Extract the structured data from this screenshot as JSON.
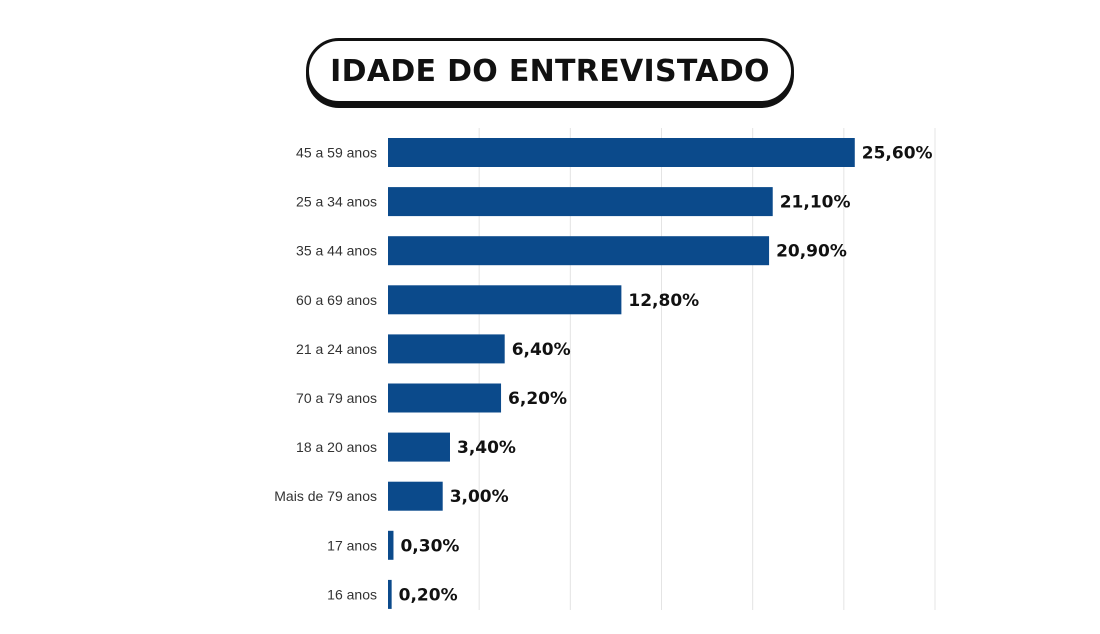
{
  "colors": {
    "bar": "#0b4a8b",
    "grid": "#e4e4e4"
  },
  "chart_data": {
    "type": "bar",
    "orientation": "horizontal",
    "title": "IDADE DO ENTREVISTADO",
    "xlabel": "",
    "ylabel": "",
    "xlim": [
      0,
      30
    ],
    "grid": true,
    "legend": "none",
    "categories": [
      "45 a 59 anos",
      "25 a 34 anos",
      "35 a 44 anos",
      "60 a 69 anos",
      "21 a 24 anos",
      "70 a 79 anos",
      "18 a 20 anos",
      "Mais de 79 anos",
      "17 anos",
      "16 anos"
    ],
    "values": [
      25.6,
      21.1,
      20.9,
      12.8,
      6.4,
      6.2,
      3.4,
      3.0,
      0.3,
      0.2
    ],
    "value_labels": [
      "25,60%",
      "21,10%",
      "20,90%",
      "12,80%",
      "6,40%",
      "6,20%",
      "3,40%",
      "3,00%",
      "0,30%",
      "0,20%"
    ]
  }
}
